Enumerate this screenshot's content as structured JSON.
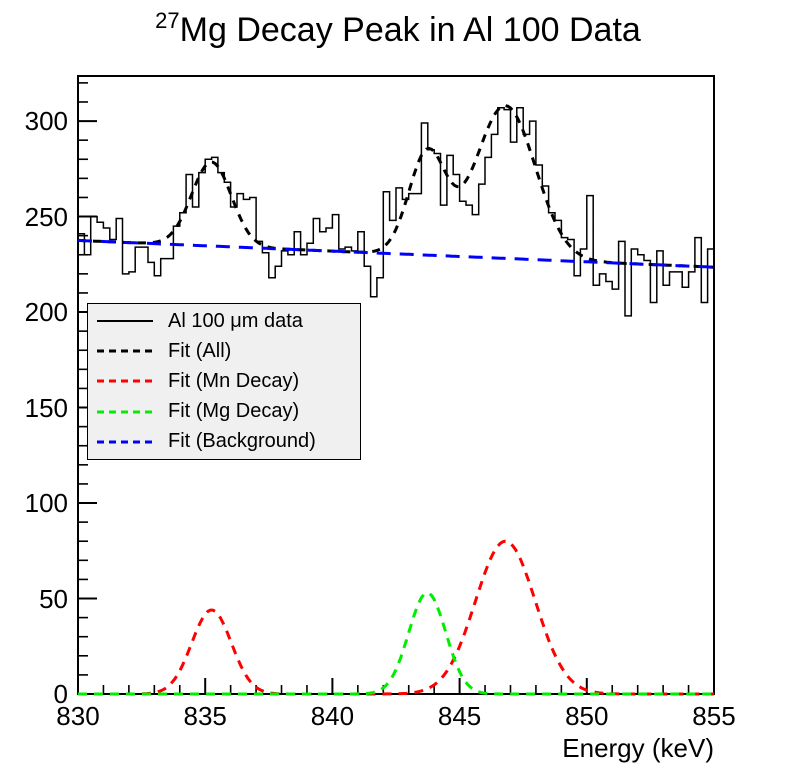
{
  "title": {
    "superscript": "27",
    "text": "Mg Decay Peak in Al 100 Data"
  },
  "chart_data": {
    "type": "histogram",
    "title": "27Mg Decay Peak in Al 100 Data",
    "xlabel": "Energy (keV)",
    "ylabel": "",
    "xlim": [
      830,
      855
    ],
    "ylim": [
      0,
      323.6
    ],
    "grid": false,
    "x_major_ticks": [
      830,
      835,
      840,
      845,
      850,
      855
    ],
    "x_minor_step": 1,
    "y_major_ticks": [
      0,
      50,
      100,
      150,
      200,
      250,
      300
    ],
    "y_minor_step": 10,
    "histogram": {
      "name": "Al 100 μm data",
      "color": "#000000",
      "bin_start": 830,
      "bin_width": 0.25,
      "counts": [
        241,
        230,
        250,
        247,
        244,
        238,
        249,
        220,
        221,
        234,
        234,
        226,
        219,
        228,
        228,
        245,
        252,
        272,
        255,
        273,
        280,
        281,
        273,
        268,
        255,
        262,
        259,
        260,
        237,
        231,
        218,
        224,
        232,
        230,
        242,
        230,
        236,
        249,
        242,
        244,
        251,
        233,
        234,
        232,
        242,
        224,
        208,
        218,
        263,
        248,
        265,
        259,
        262,
        262,
        299,
        285,
        283,
        256,
        282,
        272,
        258,
        256,
        251,
        267,
        281,
        293,
        307,
        306,
        289,
        307,
        293,
        300,
        277,
        266,
        252,
        248,
        239,
        238,
        219,
        233,
        261,
        214,
        220,
        216,
        212,
        237,
        198,
        233,
        230,
        227,
        205,
        232,
        214,
        221,
        221,
        213,
        221,
        239,
        205,
        233
      ]
    },
    "fits": {
      "all": {
        "name": "Fit (All)",
        "color": "#000000",
        "composition": "background + mn_decay + mg_decay"
      },
      "mn_decay": {
        "name": "Fit (Mn Decay)",
        "color": "#ff0000",
        "gaussians": [
          {
            "center": 835.25,
            "amplitude": 44,
            "sigma": 0.78
          },
          {
            "center": 846.8,
            "amplitude": 80,
            "sigma": 1.18
          }
        ]
      },
      "mg_decay": {
        "name": "Fit (Mg Decay)",
        "color": "#00ee00",
        "gaussians": [
          {
            "center": 843.73,
            "amplitude": 53,
            "sigma": 0.73
          }
        ]
      },
      "background": {
        "name": "Fit (Background)",
        "color": "#0000ff",
        "linear": {
          "value_at_830": 237.5,
          "value_at_855": 223.5
        }
      }
    },
    "legend_position": "middle-left"
  },
  "legend": {
    "items": [
      {
        "label": "Al 100 μm data",
        "color": "#000000",
        "style": "solid"
      },
      {
        "label": "Fit (All)",
        "color": "#000000",
        "style": "dashed"
      },
      {
        "label": "Fit (Mn Decay)",
        "color": "#ff0000",
        "style": "dashed"
      },
      {
        "label": "Fit (Mg Decay)",
        "color": "#00ee00",
        "style": "dashed"
      },
      {
        "label": "Fit (Background)",
        "color": "#0000ff",
        "style": "dashed"
      }
    ]
  }
}
